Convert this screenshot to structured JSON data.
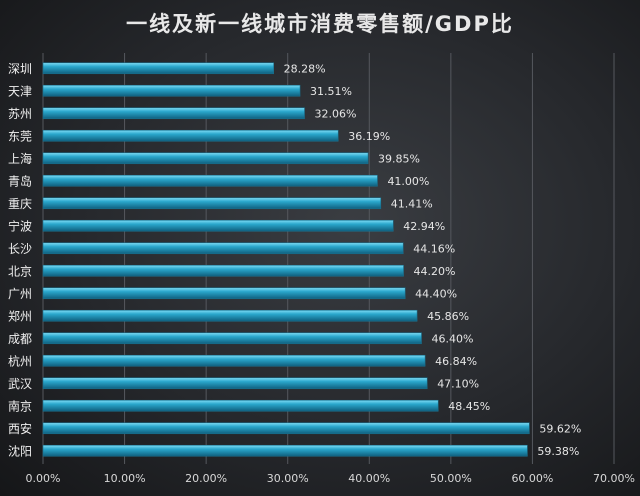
{
  "chart_data": {
    "type": "bar",
    "orientation": "horizontal",
    "title": "一线及新一线城市消费零售额/GDP比",
    "categories": [
      "深圳",
      "天津",
      "苏州",
      "东莞",
      "上海",
      "青岛",
      "重庆",
      "宁波",
      "长沙",
      "北京",
      "广州",
      "郑州",
      "成都",
      "杭州",
      "武汉",
      "南京",
      "西安",
      "沈阳"
    ],
    "values": [
      28.28,
      31.51,
      32.06,
      36.19,
      39.85,
      41.0,
      41.41,
      42.94,
      44.16,
      44.2,
      44.4,
      45.86,
      46.4,
      46.84,
      47.1,
      48.45,
      59.62,
      59.38
    ],
    "data_labels": [
      "28.28%",
      "31.51%",
      "32.06%",
      "36.19%",
      "39.85%",
      "41.00%",
      "41.41%",
      "42.94%",
      "44.16%",
      "44.20%",
      "44.40%",
      "45.86%",
      "46.40%",
      "46.84%",
      "47.10%",
      "48.45%",
      "59.62%",
      "59.38%"
    ],
    "xlim": [
      0,
      70
    ],
    "x_ticks": [
      "0.00%",
      "10.00%",
      "20.00%",
      "30.00%",
      "40.00%",
      "50.00%",
      "60.00%",
      "70.00%"
    ],
    "grid": true,
    "bar_color": "#2aa7cc",
    "background_color": "#2b2d31"
  }
}
